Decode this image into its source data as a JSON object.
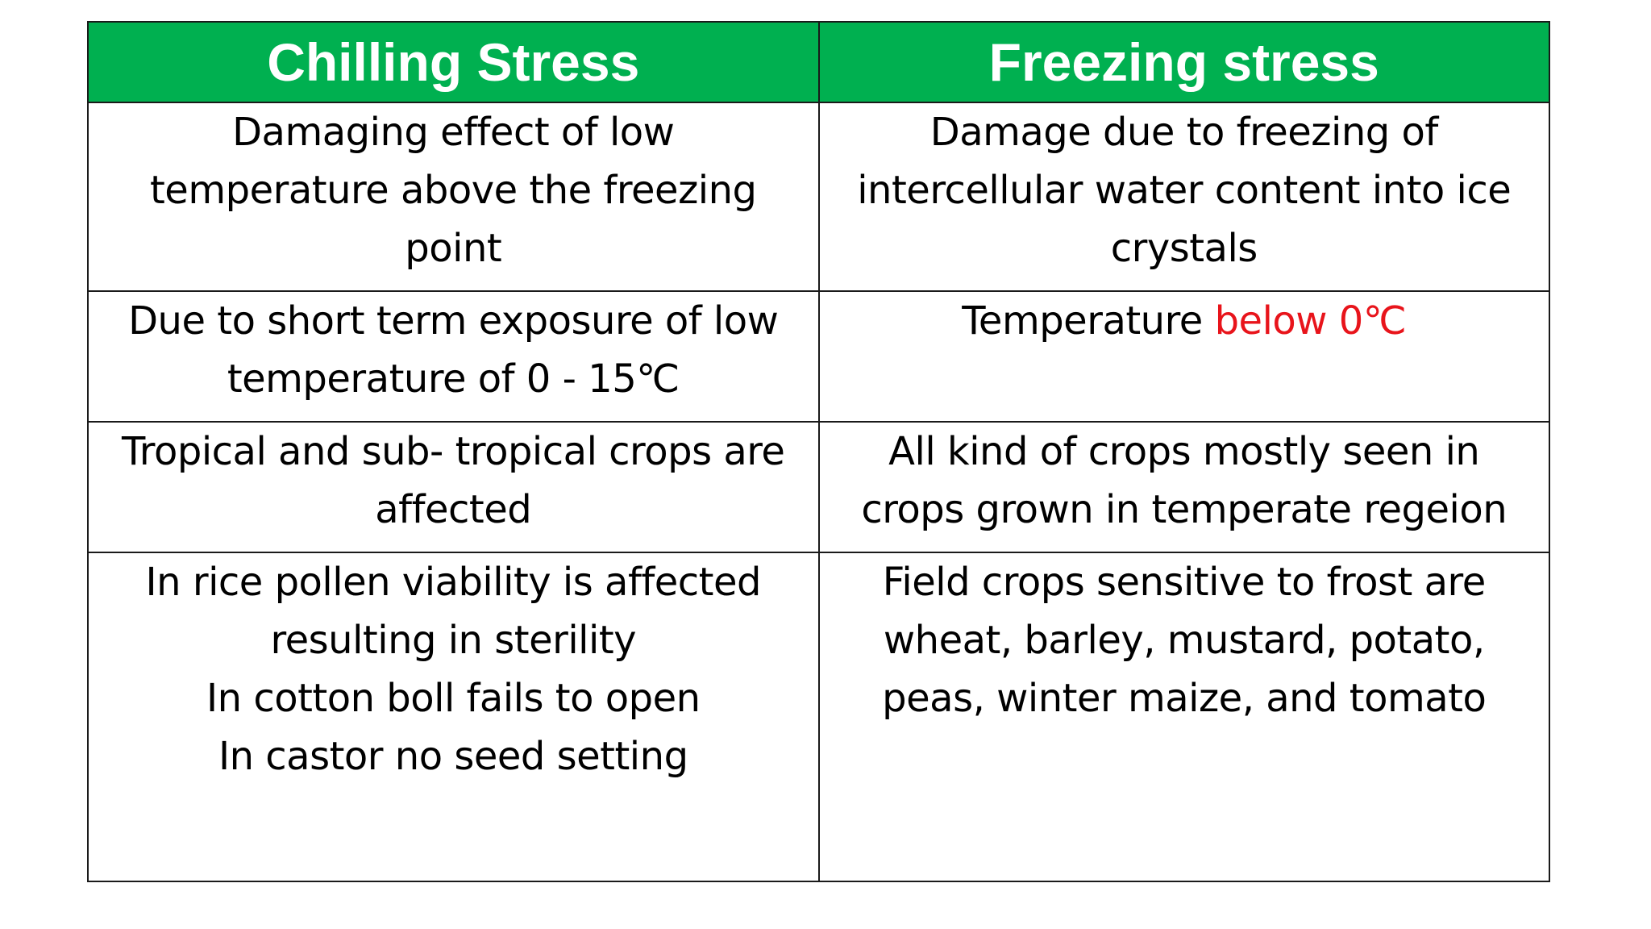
{
  "table": {
    "headers": {
      "chilling": "Chilling Stress",
      "freezing": "Freezing stress"
    },
    "rows": [
      {
        "chilling": [
          "Damaging effect of low",
          "temperature above the freezing",
          "point"
        ],
        "freezing": [
          "Damage due to freezing of",
          "intercellular water content into ice",
          "crystals"
        ]
      },
      {
        "chilling": [
          "Due to short term exposure of low",
          "temperature of 0 - 15℃"
        ],
        "freezing": {
          "prefix": "Temperature ",
          "highlight": "below 0℃"
        }
      },
      {
        "chilling": [
          "Tropical and sub- tropical crops are",
          "affected"
        ],
        "freezing": [
          "All kind of crops mostly seen in",
          "crops grown in temperate regeion"
        ]
      },
      {
        "chilling": [
          "In rice pollen viability is affected",
          "resulting in sterility",
          "In cotton boll fails to open",
          "In castor no seed setting"
        ],
        "freezing": [
          "Field crops sensitive to frost are",
          "wheat, barley, mustard, potato,",
          "peas, winter maize, and tomato"
        ]
      }
    ]
  },
  "colors": {
    "header_background": "#00b050",
    "header_text": "#ffffff",
    "highlight_text": "#e8141b",
    "border": "#1a1a1a"
  }
}
